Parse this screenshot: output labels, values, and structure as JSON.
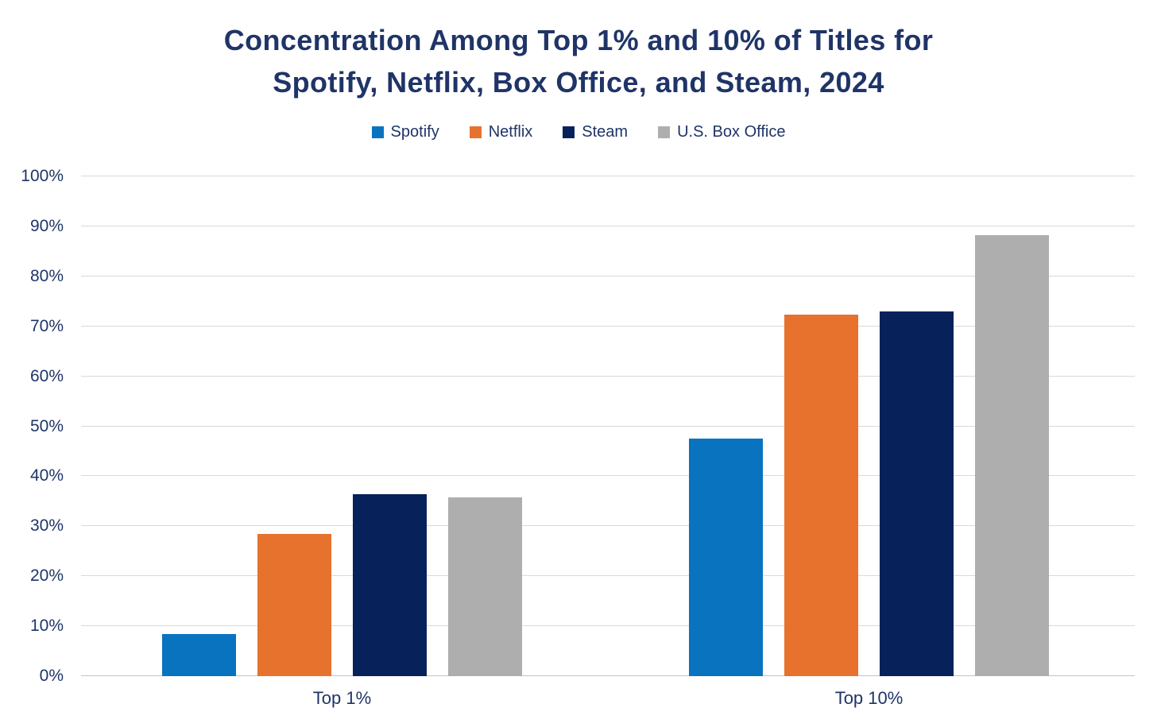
{
  "chart_data": {
    "type": "bar",
    "title": "Concentration Among Top 1% and 10% of Titles for Spotify, Netflix, Box Office, and Steam, 2024",
    "title_lines": [
      "Concentration Among Top 1% and 10% of Titles for",
      "Spotify, Netflix, Box Office, and Steam, 2024"
    ],
    "categories": [
      "Top 1%",
      "Top 10%"
    ],
    "series": [
      {
        "name": "Spotify",
        "color": "#0a73c0",
        "values": [
          8.4,
          47.5
        ]
      },
      {
        "name": "Netflix",
        "color": "#e6722e",
        "values": [
          28.4,
          72.3
        ]
      },
      {
        "name": "Steam",
        "color": "#07215a",
        "values": [
          36.4,
          73.0
        ]
      },
      {
        "name": "U.S. Box Office",
        "color": "#aeaeae",
        "values": [
          35.7,
          88.2
        ]
      }
    ],
    "xlabel": "",
    "ylabel": "",
    "ylim": [
      0,
      100
    ],
    "ytick_values": [
      0,
      10,
      20,
      30,
      40,
      50,
      60,
      70,
      80,
      90,
      100
    ],
    "yticks": [
      "0%",
      "10%",
      "20%",
      "30%",
      "40%",
      "50%",
      "60%",
      "70%",
      "80%",
      "90%",
      "100%"
    ],
    "grid": true,
    "legend_position": "top"
  },
  "styles": {
    "background": "#ffffff",
    "title_color": "#1f3467",
    "axis_text_color": "#1f3467",
    "gridline_color": "#d9d9d9",
    "baseline_color": "#c3c3c3"
  }
}
